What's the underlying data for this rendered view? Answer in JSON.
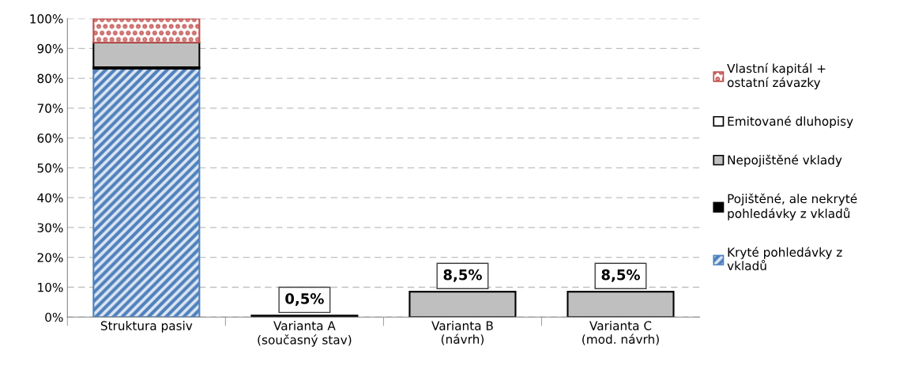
{
  "chart_data": {
    "type": "bar",
    "stacked": true,
    "categories": [
      "Struktura pasiv",
      "Varianta A\n(současný stav)",
      "Varianta B\n(návrh)",
      "Varianta C\n(mod. návrh)"
    ],
    "series": [
      {
        "name": "Kryté pohledávky z\nvkladů",
        "color": "#4f81bd",
        "values": [
          83.2,
          0,
          0,
          0
        ]
      },
      {
        "name": "Pojištěné, ale nekryté\npohledávky z vkladů",
        "color": "#000000",
        "values": [
          0.5,
          0.5,
          0,
          0
        ],
        "value_labels": [
          null,
          "0,5%",
          null,
          null
        ]
      },
      {
        "name": "Nepojištěné vklady",
        "color": "#bfbfbf",
        "values": [
          8.3,
          0,
          8.5,
          8.5
        ],
        "value_labels": [
          null,
          null,
          "8,5%",
          "8,5%"
        ]
      },
      {
        "name": "Emitované dluhopisy",
        "color": "#ffffff",
        "values": [
          0,
          0,
          0,
          0
        ]
      },
      {
        "name": "Vlastní kapitál +\nostatní závazky",
        "color": "#c0504d",
        "values": [
          8,
          0,
          0,
          0
        ]
      }
    ],
    "ylim": [
      0,
      100
    ],
    "yticks": [
      {
        "value": 0,
        "label": "0%"
      },
      {
        "value": 10,
        "label": "10%"
      },
      {
        "value": 20,
        "label": "20%"
      },
      {
        "value": 30,
        "label": "30%"
      },
      {
        "value": 40,
        "label": "40%"
      },
      {
        "value": 50,
        "label": "50%"
      },
      {
        "value": 60,
        "label": "60%"
      },
      {
        "value": 70,
        "label": "70%"
      },
      {
        "value": 80,
        "label": "80%"
      },
      {
        "value": 90,
        "label": "90%"
      },
      {
        "value": 100,
        "label": "100%"
      }
    ],
    "grid": "y",
    "legend": "right"
  }
}
